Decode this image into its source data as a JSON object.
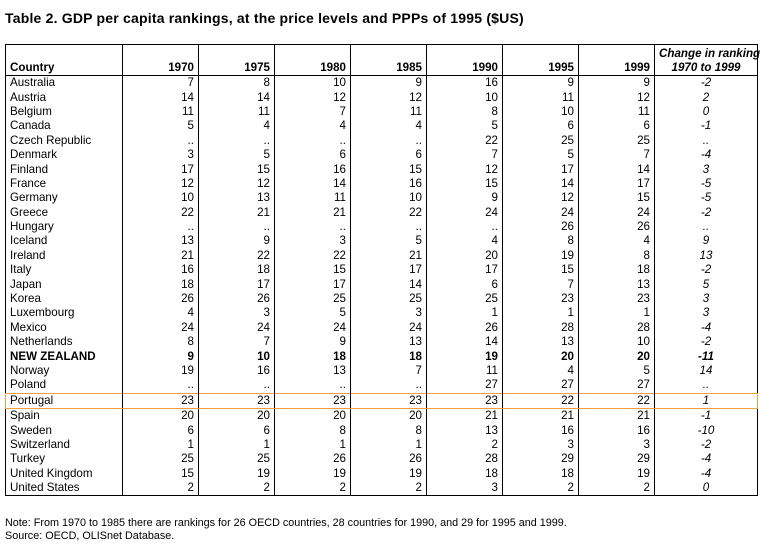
{
  "title": "Table 2. GDP per capita rankings, at the price levels and PPPs of 1995 ($US)",
  "header": {
    "country": "Country",
    "years": [
      "1970",
      "1975",
      "1980",
      "1985",
      "1990",
      "1995",
      "1999"
    ],
    "change_line1": "Change in ranking",
    "change_line2": "1970 to 1999"
  },
  "rows": [
    {
      "country": "Australia",
      "v": [
        "7",
        "8",
        "10",
        "9",
        "16",
        "9",
        "9"
      ],
      "change": "-2"
    },
    {
      "country": "Austria",
      "v": [
        "14",
        "14",
        "12",
        "12",
        "10",
        "11",
        "12"
      ],
      "change": "2"
    },
    {
      "country": "Belgium",
      "v": [
        "11",
        "11",
        "7",
        "11",
        "8",
        "10",
        "11"
      ],
      "change": "0"
    },
    {
      "country": "Canada",
      "v": [
        "5",
        "4",
        "4",
        "4",
        "5",
        "6",
        "6"
      ],
      "change": "-1"
    },
    {
      "country": "Czech Republic",
      "v": [
        "..",
        "..",
        "..",
        "..",
        "22",
        "25",
        "25"
      ],
      "change": ".."
    },
    {
      "country": "Denmark",
      "v": [
        "3",
        "5",
        "6",
        "6",
        "7",
        "5",
        "7"
      ],
      "change": "-4"
    },
    {
      "country": "Finland",
      "v": [
        "17",
        "15",
        "16",
        "15",
        "12",
        "17",
        "14"
      ],
      "change": "3"
    },
    {
      "country": "France",
      "v": [
        "12",
        "12",
        "14",
        "16",
        "15",
        "14",
        "17"
      ],
      "change": "-5"
    },
    {
      "country": "Germany",
      "v": [
        "10",
        "13",
        "11",
        "10",
        "9",
        "12",
        "15"
      ],
      "change": "-5"
    },
    {
      "country": "Greece",
      "v": [
        "22",
        "21",
        "21",
        "22",
        "24",
        "24",
        "24"
      ],
      "change": "-2"
    },
    {
      "country": "Hungary",
      "v": [
        "..",
        "..",
        "..",
        "..",
        "..",
        "26",
        "26"
      ],
      "change": ".."
    },
    {
      "country": "Iceland",
      "v": [
        "13",
        "9",
        "3",
        "5",
        "4",
        "8",
        "4"
      ],
      "change": "9"
    },
    {
      "country": "Ireland",
      "v": [
        "21",
        "22",
        "22",
        "21",
        "20",
        "19",
        "8"
      ],
      "change": "13"
    },
    {
      "country": "Italy",
      "v": [
        "16",
        "18",
        "15",
        "17",
        "17",
        "15",
        "18"
      ],
      "change": "-2"
    },
    {
      "country": "Japan",
      "v": [
        "18",
        "17",
        "17",
        "14",
        "6",
        "7",
        "13"
      ],
      "change": "5"
    },
    {
      "country": "Korea",
      "v": [
        "26",
        "26",
        "25",
        "25",
        "25",
        "23",
        "23"
      ],
      "change": "3"
    },
    {
      "country": "Luxembourg",
      "v": [
        "4",
        "3",
        "5",
        "3",
        "1",
        "1",
        "1"
      ],
      "change": "3"
    },
    {
      "country": "Mexico",
      "v": [
        "24",
        "24",
        "24",
        "24",
        "26",
        "28",
        "28"
      ],
      "change": "-4"
    },
    {
      "country": "Netherlands",
      "v": [
        "8",
        "7",
        "9",
        "13",
        "14",
        "13",
        "10"
      ],
      "change": "-2"
    },
    {
      "country": "NEW ZEALAND",
      "v": [
        "9",
        "10",
        "18",
        "18",
        "19",
        "20",
        "20"
      ],
      "change": "-11",
      "bold": true
    },
    {
      "country": "Norway",
      "v": [
        "19",
        "16",
        "13",
        "7",
        "11",
        "4",
        "5"
      ],
      "change": "14"
    },
    {
      "country": "Poland",
      "v": [
        "..",
        "..",
        "..",
        "..",
        "27",
        "27",
        "27"
      ],
      "change": ".."
    },
    {
      "country": "Portugal",
      "v": [
        "23",
        "23",
        "23",
        "23",
        "23",
        "22",
        "22"
      ],
      "change": "1",
      "highlight": true
    },
    {
      "country": "Spain",
      "v": [
        "20",
        "20",
        "20",
        "20",
        "21",
        "21",
        "21"
      ],
      "change": "-1"
    },
    {
      "country": "Sweden",
      "v": [
        "6",
        "6",
        "8",
        "8",
        "13",
        "16",
        "16"
      ],
      "change": "-10"
    },
    {
      "country": "Switzerland",
      "v": [
        "1",
        "1",
        "1",
        "1",
        "2",
        "3",
        "3"
      ],
      "change": "-2"
    },
    {
      "country": "Turkey",
      "v": [
        "25",
        "25",
        "26",
        "26",
        "28",
        "29",
        "29"
      ],
      "change": "-4"
    },
    {
      "country": "United Kingdom",
      "v": [
        "15",
        "19",
        "19",
        "19",
        "18",
        "18",
        "19"
      ],
      "change": "-4"
    },
    {
      "country": "United States",
      "v": [
        "2",
        "2",
        "2",
        "2",
        "3",
        "2",
        "2"
      ],
      "change": "0"
    }
  ],
  "note": "Note:  From 1970 to 1985 there are rankings for 26 OECD countries, 28 countries for 1990, and 29 for 1995 and 1999.",
  "source": "Source:  OECD, OLISnet Database.",
  "colors": {
    "highlight_border": "#f0a040"
  }
}
